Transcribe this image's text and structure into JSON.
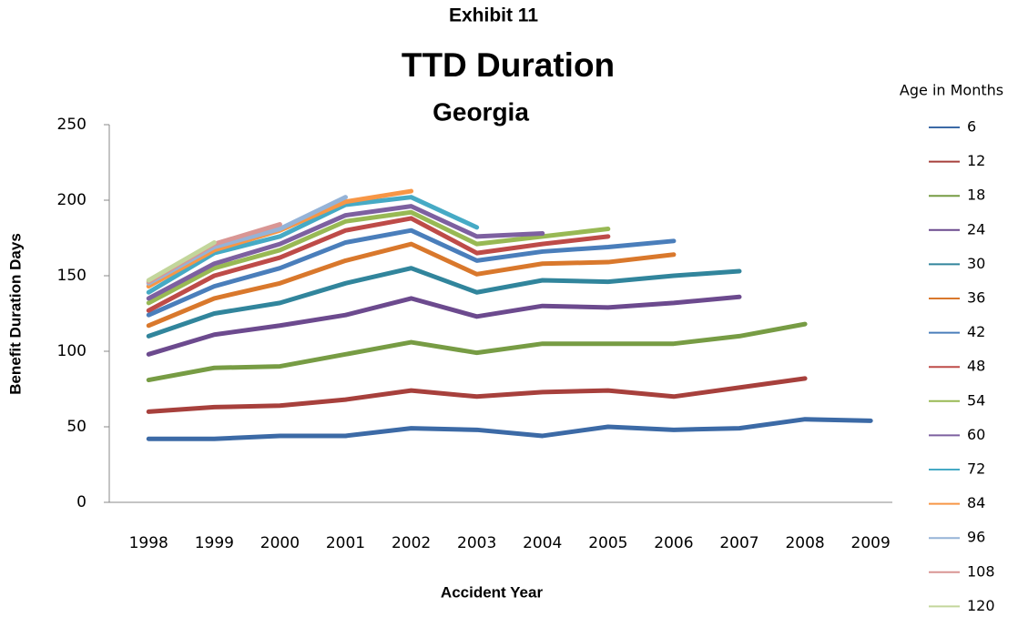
{
  "chart_data": {
    "type": "line",
    "supertitle": "Exhibit 11",
    "title": "TTD Duration",
    "subtitle": "Georgia",
    "x_label": "Accident Year",
    "y_label": "Benefit Duration Days",
    "legend_title": "Age in Months",
    "legend_position": "right",
    "categories": [
      "1998",
      "1999",
      "2000",
      "2001",
      "2002",
      "2003",
      "2004",
      "2005",
      "2006",
      "2007",
      "2008",
      "2009"
    ],
    "ylim": [
      0,
      250
    ],
    "yticks": [
      0,
      50,
      100,
      150,
      200,
      250
    ],
    "series": [
      {
        "name": "6",
        "color": "#3c6aa6",
        "values": [
          42,
          42,
          44,
          44,
          49,
          48,
          44,
          50,
          48,
          49,
          55,
          54
        ]
      },
      {
        "name": "12",
        "color": "#a7403c",
        "values": [
          60,
          63,
          64,
          68,
          74,
          70,
          73,
          74,
          70,
          76,
          82,
          null
        ]
      },
      {
        "name": "18",
        "color": "#779c44",
        "values": [
          81,
          89,
          90,
          98,
          106,
          99,
          105,
          105,
          105,
          110,
          118,
          null
        ]
      },
      {
        "name": "24",
        "color": "#6c4a8e",
        "values": [
          98,
          111,
          117,
          124,
          135,
          123,
          130,
          129,
          132,
          136,
          null,
          null
        ]
      },
      {
        "name": "30",
        "color": "#31859c",
        "values": [
          110,
          125,
          132,
          145,
          155,
          139,
          147,
          146,
          150,
          153,
          null,
          null
        ]
      },
      {
        "name": "36",
        "color": "#d9782c",
        "values": [
          117,
          135,
          145,
          160,
          171,
          151,
          158,
          159,
          164,
          null,
          null,
          null
        ]
      },
      {
        "name": "42",
        "color": "#4a7ebb",
        "values": [
          124,
          143,
          155,
          172,
          180,
          160,
          166,
          169,
          173,
          null,
          null,
          null
        ]
      },
      {
        "name": "48",
        "color": "#be4b48",
        "values": [
          127,
          150,
          162,
          180,
          188,
          165,
          171,
          176,
          null,
          null,
          null,
          null
        ]
      },
      {
        "name": "54",
        "color": "#98b954",
        "values": [
          132,
          155,
          167,
          186,
          192,
          171,
          176,
          181,
          null,
          null,
          null,
          null
        ]
      },
      {
        "name": "60",
        "color": "#7d60a0",
        "values": [
          135,
          158,
          171,
          190,
          196,
          176,
          178,
          null,
          null,
          null,
          null,
          null
        ]
      },
      {
        "name": "72",
        "color": "#46aac5",
        "values": [
          139,
          165,
          176,
          197,
          202,
          182,
          null,
          null,
          null,
          null,
          null,
          null
        ]
      },
      {
        "name": "84",
        "color": "#f79646",
        "values": [
          143,
          167,
          180,
          199,
          206,
          null,
          null,
          null,
          null,
          null,
          null,
          null
        ]
      },
      {
        "name": "96",
        "color": "#95b3d7",
        "values": [
          145,
          169,
          181,
          202,
          null,
          null,
          null,
          null,
          null,
          null,
          null,
          null
        ]
      },
      {
        "name": "108",
        "color": "#d99694",
        "values": [
          146,
          171,
          184,
          null,
          null,
          null,
          null,
          null,
          null,
          null,
          null,
          null
        ]
      },
      {
        "name": "120",
        "color": "#c3d69b",
        "values": [
          147,
          172,
          null,
          null,
          null,
          null,
          null,
          null,
          null,
          null,
          null,
          null
        ]
      }
    ]
  }
}
